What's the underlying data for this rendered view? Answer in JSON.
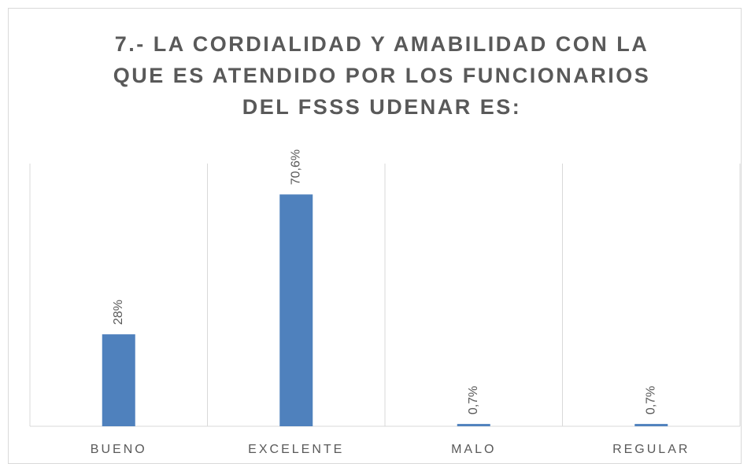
{
  "chart_data": {
    "type": "bar",
    "title": "7.- LA CORDIALIDAD Y AMABILIDAD CON LA QUE ES ATENDIDO POR LOS FUNCIONARIOS DEL FSSS UDENAR ES:",
    "categories": [
      "BUENO",
      "EXCELENTE",
      "MALO",
      "REGULAR"
    ],
    "values": [
      28,
      70.6,
      0.7,
      0.7
    ],
    "value_labels": [
      "28%",
      "70,6%",
      "0,7%",
      "0,7%"
    ],
    "color": "#4f81bd",
    "ylim": [
      0,
      80
    ]
  }
}
